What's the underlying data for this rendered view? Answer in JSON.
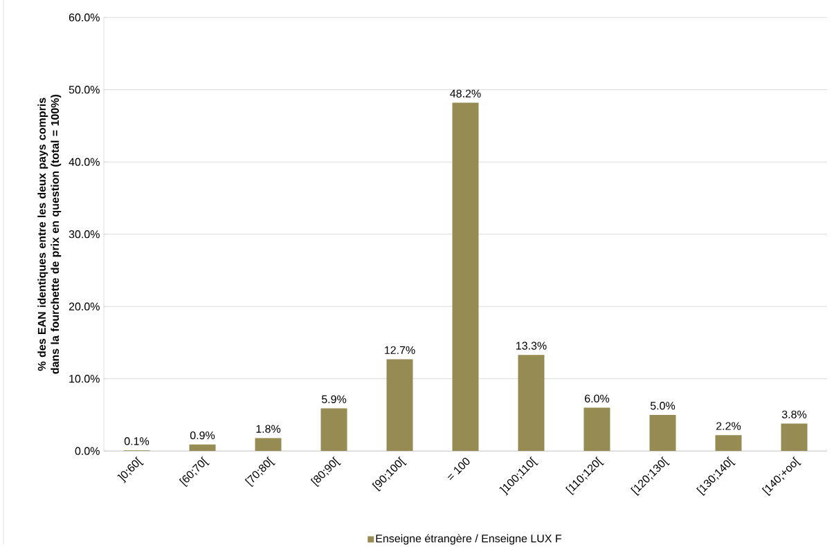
{
  "chart_data": {
    "type": "bar",
    "ylabel": "% des EAN identiques entre les deux pays compris dans la fourchette de prix en question (total = 100%)",
    "categories": [
      "]0;60[",
      "[60;70[",
      "[70;80[",
      "[80;90[",
      "[90;100[",
      "= 100",
      "]100;110[",
      "[110;120[",
      "[120;130[",
      "[130;140[",
      "[140;+oo["
    ],
    "series": [
      {
        "name": "Enseigne étrangère / Enseigne LUX F",
        "color": "#968b52",
        "values": [
          0.1,
          0.9,
          1.8,
          5.9,
          12.7,
          48.2,
          13.3,
          6.0,
          5.0,
          2.2,
          3.8
        ],
        "value_labels": [
          "0.1%",
          "0.9%",
          "1.8%",
          "5.9%",
          "12.7%",
          "48.2%",
          "13.3%",
          "6.0%",
          "5.0%",
          "2.2%",
          "3.8%"
        ]
      }
    ],
    "ylim": [
      0,
      60
    ],
    "yticks": [
      {
        "value": 0,
        "label": "0.0%"
      },
      {
        "value": 10,
        "label": "10.0%"
      },
      {
        "value": 20,
        "label": "20.0%"
      },
      {
        "value": 30,
        "label": "30.0%"
      },
      {
        "value": 40,
        "label": "40.0%"
      },
      {
        "value": 50,
        "label": "50.0%"
      },
      {
        "value": 60,
        "label": "60.0%"
      }
    ],
    "grid": "y",
    "legend": "bottom"
  }
}
